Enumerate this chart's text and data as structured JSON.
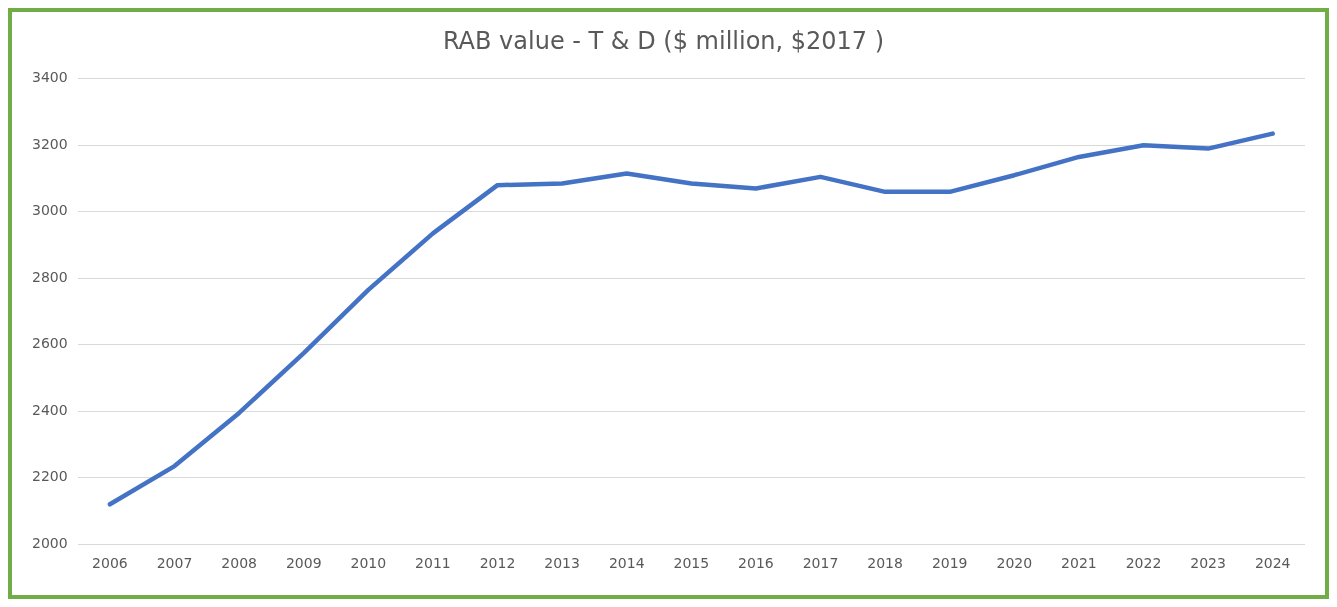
{
  "chart_data": {
    "type": "line",
    "title": "RAB value - T & D ($ million, $2017 )",
    "categories": [
      "2006",
      "2007",
      "2008",
      "2009",
      "2010",
      "2011",
      "2012",
      "2013",
      "2014",
      "2015",
      "2016",
      "2017",
      "2018",
      "2019",
      "2020",
      "2021",
      "2022",
      "2023",
      "2024"
    ],
    "series": [
      {
        "color": "#4472c4",
        "values": [
          2120,
          2235,
          2395,
          2575,
          2765,
          2935,
          3080,
          3085,
          3115,
          3085,
          3070,
          3105,
          3060,
          3060,
          3110,
          3165,
          3200,
          3190,
          3235
        ]
      }
    ],
    "ylim": [
      2000,
      3400
    ],
    "yticks": [
      2000,
      2200,
      2400,
      2600,
      2800,
      3000,
      3200,
      3400
    ],
    "grid": "y",
    "legend": false,
    "marker": "none",
    "line_style": "solid"
  }
}
